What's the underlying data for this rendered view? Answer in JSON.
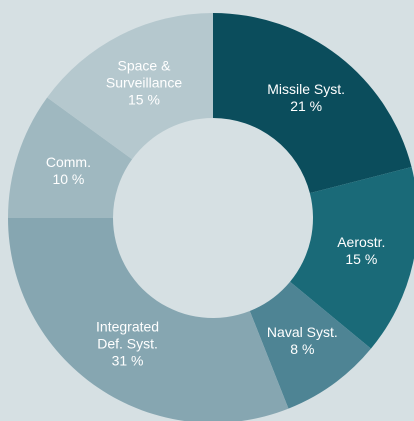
{
  "chart_data": {
    "type": "donut",
    "categories": [
      "Missile Syst.",
      "Aerostr.",
      "Naval Syst.",
      "Integrated\nDef. Syst.",
      "Comm.",
      "Space &\nSurveillance"
    ],
    "values": [
      21,
      15,
      8,
      31,
      10,
      15
    ],
    "value_labels": [
      "21 %",
      "15 %",
      "8 %",
      "31 %",
      "10 %",
      "15 %"
    ],
    "colors": [
      "#0b4d5c",
      "#1a6a78",
      "#4e8494",
      "#86a6b1",
      "#9fb8c0",
      "#b5c8ce"
    ]
  }
}
